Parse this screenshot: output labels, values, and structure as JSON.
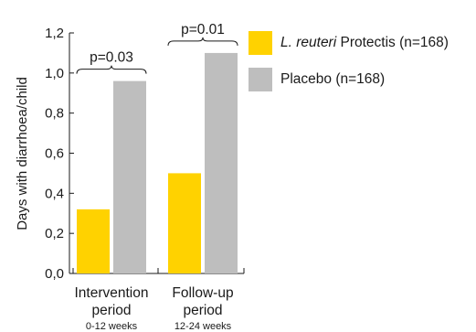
{
  "chart_data": {
    "type": "bar",
    "ylabel": "Days with diarrhoea/child",
    "ylim": [
      0,
      1.2
    ],
    "yticks": [
      "0,0",
      "0,2",
      "0,4",
      "0,6",
      "0,8",
      "1,0",
      "1,2"
    ],
    "ytick_values": [
      0,
      0.2,
      0.4,
      0.6,
      0.8,
      1.0,
      1.2
    ],
    "categories": [
      {
        "line1": "Intervention",
        "line2": "period",
        "sub": "0-12 weeks"
      },
      {
        "line1": "Follow-up",
        "line2": "period",
        "sub": "12-24 weeks"
      }
    ],
    "series": [
      {
        "name_italic": "L. reuteri",
        "name_rest": " Protectis (n=168)",
        "color": "#FFD200",
        "values": [
          0.32,
          0.5
        ]
      },
      {
        "name_italic": "",
        "name_rest": "Placebo (n=168)",
        "color": "#BEBEBE",
        "values": [
          0.96,
          1.1
        ]
      }
    ],
    "annotations": [
      "p=0.03",
      "p=0.01"
    ],
    "grid": false,
    "legend_position": "right"
  }
}
